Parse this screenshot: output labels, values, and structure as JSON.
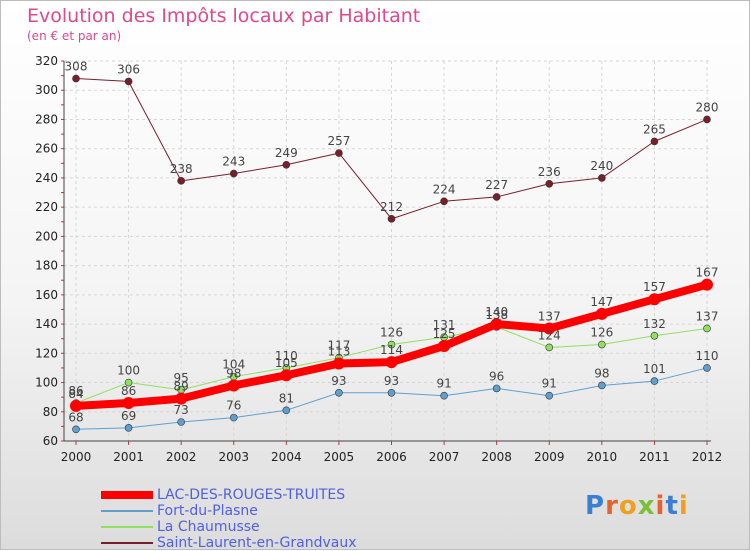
{
  "title": "Evolution des Impôts locaux par Habitant",
  "subtitle": "(en € et par an)",
  "brand": {
    "text": "Proxiti",
    "colors": [
      "#3b7fd4",
      "#e8622c",
      "#f0a020",
      "#7bbf3a",
      "#e8622c",
      "#3b7fd4",
      "#f0a020"
    ]
  },
  "chart_data": {
    "type": "line",
    "x": [
      "2000",
      "2001",
      "2002",
      "2003",
      "2004",
      "2005",
      "2006",
      "2007",
      "2008",
      "2009",
      "2010",
      "2011",
      "2012"
    ],
    "ylim": [
      60,
      320
    ],
    "yticks": [
      60,
      80,
      100,
      120,
      140,
      160,
      180,
      200,
      220,
      240,
      260,
      280,
      300,
      320
    ],
    "grid": true,
    "legend": "bottom-left",
    "series": [
      {
        "name": "Saint-Laurent-en-Grandvaux",
        "color": "#7a1f2a",
        "width": 1,
        "values": [
          308,
          306,
          238,
          243,
          249,
          257,
          212,
          224,
          227,
          236,
          240,
          265,
          280
        ]
      },
      {
        "name": "La Chaumusse",
        "color": "#90e060",
        "width": 1,
        "values": [
          86,
          100,
          95,
          104,
          110,
          117,
          126,
          131,
          138,
          124,
          126,
          132,
          137
        ]
      },
      {
        "name": "Fort-du-Plasne",
        "color": "#5e9fd0",
        "width": 1,
        "values": [
          68,
          69,
          73,
          76,
          81,
          93,
          93,
          91,
          96,
          91,
          98,
          101,
          110
        ]
      },
      {
        "name": "LAC-DES-ROUGES-TRUITES",
        "color": "#ff0000",
        "width": 8,
        "values": [
          84,
          86,
          89,
          98,
          105,
          113,
          114,
          125,
          140,
          137,
          147,
          157,
          167
        ]
      }
    ],
    "value_labels": [
      {
        "text": "308"
      },
      {
        "text": "306"
      },
      {
        "text": "238"
      },
      {
        "text": "243"
      },
      {
        "text": "249"
      },
      {
        "text": "257"
      },
      {
        "text": "212"
      },
      {
        "text": "224"
      },
      {
        "text": "227"
      },
      {
        "text": "236"
      },
      {
        "text": "240"
      },
      {
        "text": "265"
      },
      {
        "text": "280"
      }
    ]
  }
}
